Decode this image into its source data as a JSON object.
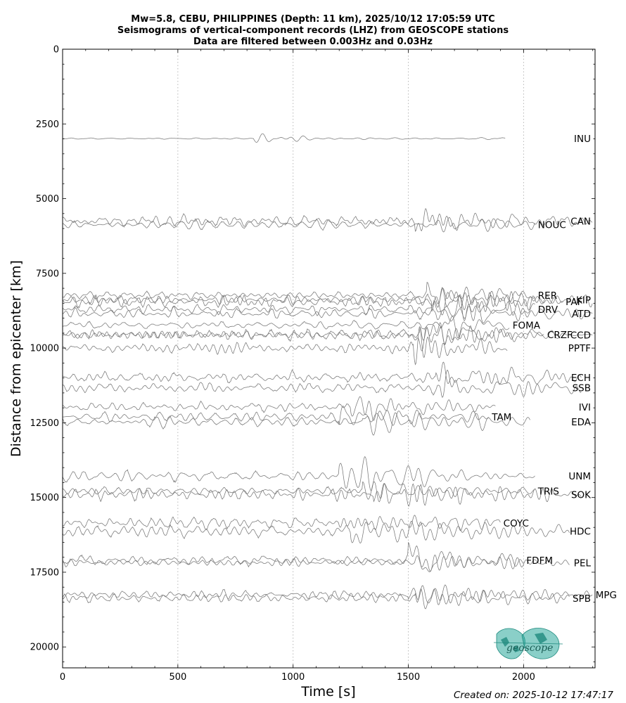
{
  "chart_data": {
    "type": "line",
    "title": [
      "Mw=5.8, CEBU, PHILIPPINES (Depth: 11 km), 2025/10/12 17:05:59 UTC",
      "Seismograms of vertical-component records (LHZ) from GEOSCOPE stations",
      "Data are filtered between 0.003Hz and 0.03Hz"
    ],
    "xlabel": "Time [s]",
    "ylabel": "Distance from epicenter [km]",
    "xlim": [
      0,
      2310
    ],
    "ylim": [
      20700,
      0
    ],
    "xticks": [
      0,
      500,
      1000,
      1500,
      2000
    ],
    "yticks": [
      0,
      2500,
      5000,
      7500,
      10000,
      12500,
      15000,
      17500,
      20000
    ],
    "grid": "vertical dotted at x ticks",
    "trace_color": "#777777",
    "stations": [
      {
        "name": "INU",
        "distance": 2990,
        "start": 0,
        "end": 1920,
        "arrival": 830,
        "label_side": "right"
      },
      {
        "name": "CAN",
        "distance": 5750,
        "start": 0,
        "end": 2300,
        "arrival": 1530,
        "label_side": "right"
      },
      {
        "name": "NOUC",
        "distance": 5870,
        "start": 0,
        "end": 2050,
        "arrival": 1560,
        "label_side": "left"
      },
      {
        "name": "KIP",
        "distance": 8380,
        "start": 0,
        "end": 2300,
        "arrival": 1600,
        "label_side": "right"
      },
      {
        "name": "RER",
        "distance": 8230,
        "start": 0,
        "end": 2050,
        "arrival": 1580,
        "label_side": "left"
      },
      {
        "name": "PAF",
        "distance": 8450,
        "start": 0,
        "end": 2170,
        "arrival": 1600,
        "label_side": "left"
      },
      {
        "name": "DRV",
        "distance": 8700,
        "start": 0,
        "end": 2050,
        "arrival": 1610,
        "label_side": "left"
      },
      {
        "name": "ATD",
        "distance": 8850,
        "start": 0,
        "end": 2300,
        "arrival": 1620,
        "label_side": "right"
      },
      {
        "name": "FOMA",
        "distance": 9230,
        "start": 0,
        "end": 1940,
        "arrival": 1640,
        "label_side": "left"
      },
      {
        "name": "CRZF",
        "distance": 9550,
        "start": 0,
        "end": 2090,
        "arrival": 1500,
        "label_side": "left"
      },
      {
        "name": "CCD",
        "distance": 9560,
        "start": 0,
        "end": 2300,
        "arrival": 1550,
        "label_side": "right"
      },
      {
        "name": "PPTF",
        "distance": 10000,
        "start": 0,
        "end": 1930,
        "arrival": 1520,
        "label_side": "right"
      },
      {
        "name": "ECH",
        "distance": 10980,
        "start": 0,
        "end": 2250,
        "arrival": 1620,
        "label_side": "right"
      },
      {
        "name": "SSB",
        "distance": 11330,
        "start": 0,
        "end": 2250,
        "arrival": 1640,
        "label_side": "right"
      },
      {
        "name": "IVI",
        "distance": 11970,
        "start": 0,
        "end": 1880,
        "arrival": 1250,
        "label_side": "right"
      },
      {
        "name": "TAM",
        "distance": 12300,
        "start": 0,
        "end": 1850,
        "arrival": 1200,
        "label_side": "left"
      },
      {
        "name": "EDA",
        "distance": 12470,
        "start": 0,
        "end": 2030,
        "arrival": 1300,
        "label_side": "right"
      },
      {
        "name": "UNM",
        "distance": 14280,
        "start": 0,
        "end": 2050,
        "arrival": 1200,
        "label_side": "right"
      },
      {
        "name": "TRIS",
        "distance": 14780,
        "start": 0,
        "end": 2050,
        "arrival": 1300,
        "label_side": "left"
      },
      {
        "name": "SOK",
        "distance": 14900,
        "start": 0,
        "end": 2250,
        "arrival": 1350,
        "label_side": "right"
      },
      {
        "name": "COYC",
        "distance": 15850,
        "start": 0,
        "end": 1900,
        "arrival": 1200,
        "label_side": "left"
      },
      {
        "name": "HDC",
        "distance": 16130,
        "start": 0,
        "end": 2200,
        "arrival": 1250,
        "label_side": "right"
      },
      {
        "name": "FDFM",
        "distance": 17100,
        "start": 0,
        "end": 2000,
        "arrival": 1500,
        "label_side": "left"
      },
      {
        "name": "PEL",
        "distance": 17180,
        "start": 0,
        "end": 2200,
        "arrival": 1530,
        "label_side": "right"
      },
      {
        "name": "MPG",
        "distance": 18250,
        "start": 0,
        "end": 2300,
        "arrival": 1500,
        "label_side": "left"
      },
      {
        "name": "SPB",
        "distance": 18370,
        "start": 0,
        "end": 2200,
        "arrival": 1530,
        "label_side": "right"
      }
    ]
  },
  "logo": {
    "text": "geoscope",
    "color": "#2aa89a"
  },
  "footer": {
    "created": "Created on: 2025-10-12 17:47:17"
  }
}
